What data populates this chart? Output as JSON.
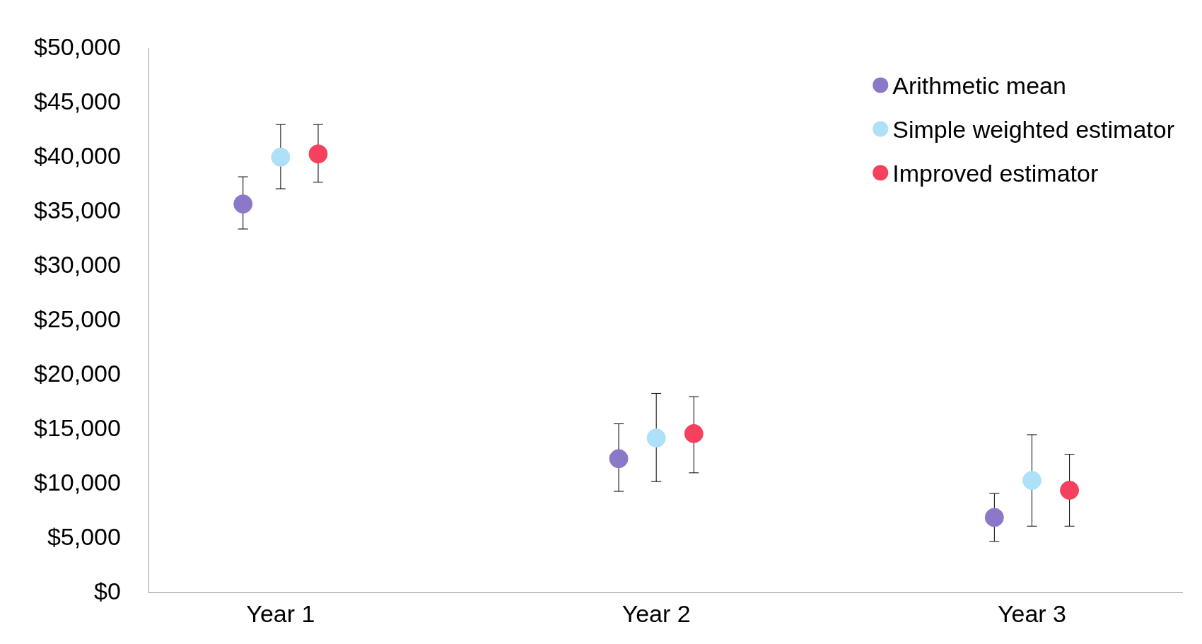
{
  "chart_data": {
    "type": "scatter",
    "categories": [
      "Year 1",
      "Year 2",
      "Year 3"
    ],
    "series": [
      {
        "name": "Arithmetic mean",
        "color": "#8c78c8",
        "values": [
          35700,
          12300,
          6900
        ],
        "errors": [
          [
            33400,
            38200
          ],
          [
            9300,
            15500
          ],
          [
            4700,
            9100
          ]
        ]
      },
      {
        "name": "Simple weighted estimator",
        "color": "#aee0f8",
        "values": [
          40000,
          14200,
          10300
        ],
        "errors": [
          [
            37100,
            43000
          ],
          [
            10200,
            18300
          ],
          [
            6100,
            14500
          ]
        ]
      },
      {
        "name": "Improved estimator",
        "color": "#f5415e",
        "values": [
          40300,
          14600,
          9400
        ],
        "errors": [
          [
            37700,
            43000
          ],
          [
            11000,
            18000
          ],
          [
            6100,
            12700
          ]
        ]
      }
    ],
    "ylim": [
      0,
      50000
    ],
    "yticks": [
      {
        "value": 0,
        "label": "$0"
      },
      {
        "value": 5000,
        "label": "$5,000"
      },
      {
        "value": 10000,
        "label": "$10,000"
      },
      {
        "value": 15000,
        "label": "$15,000"
      },
      {
        "value": 20000,
        "label": "$20,000"
      },
      {
        "value": 25000,
        "label": "$25,000"
      },
      {
        "value": 30000,
        "label": "$30,000"
      },
      {
        "value": 35000,
        "label": "$35,000"
      },
      {
        "value": 40000,
        "label": "$40,000"
      },
      {
        "value": 45000,
        "label": "$45,000"
      },
      {
        "value": 50000,
        "label": "$50,000"
      }
    ],
    "grid": false,
    "legend": "top right",
    "marker": "circle"
  }
}
